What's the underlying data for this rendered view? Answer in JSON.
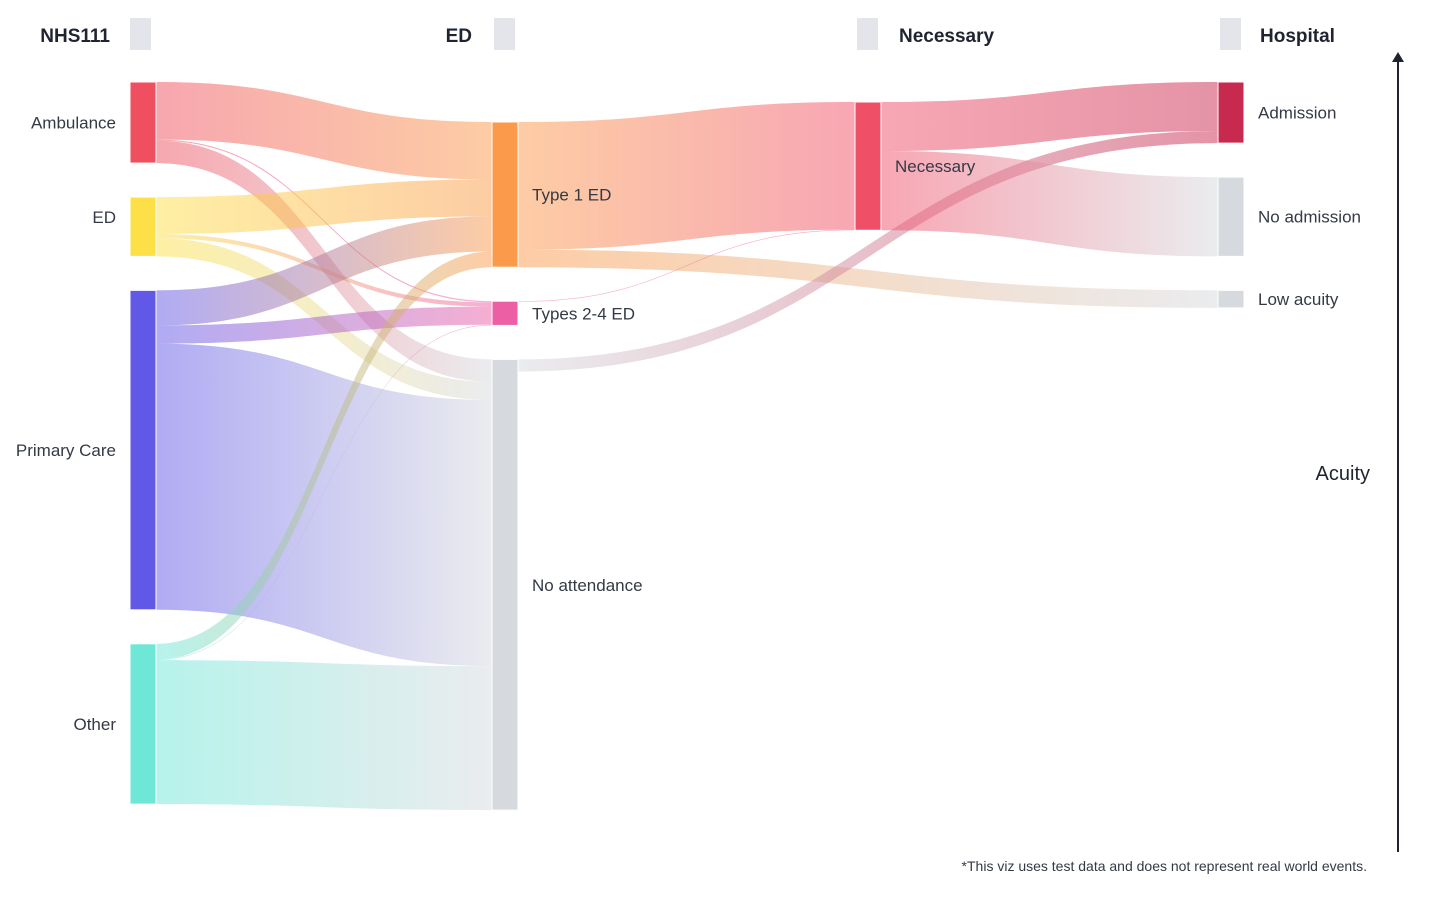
{
  "chart_data": {
    "type": "sankey",
    "columns": [
      {
        "id": "nhs111",
        "title": "NHS111"
      },
      {
        "id": "ed",
        "title": "ED"
      },
      {
        "id": "necessary",
        "title": "Necessary"
      },
      {
        "id": "hospital",
        "title": "Hospital"
      }
    ],
    "nodes": [
      {
        "id": "ambulance",
        "label": "Ambulance",
        "column": "nhs111",
        "color": "#ef4f5f"
      },
      {
        "id": "ed_src",
        "label": "ED",
        "column": "nhs111",
        "color": "#fde047"
      },
      {
        "id": "primary",
        "label": "Primary Care",
        "column": "nhs111",
        "color": "#6158e8"
      },
      {
        "id": "other",
        "label": "Other",
        "column": "nhs111",
        "color": "#6ee7d7"
      },
      {
        "id": "type1",
        "label": "Type 1 ED",
        "column": "ed",
        "color": "#fb9a4a"
      },
      {
        "id": "type24",
        "label": "Types 2-4 ED",
        "column": "ed",
        "color": "#ec5fa5"
      },
      {
        "id": "noatt",
        "label": "No attendance",
        "column": "ed",
        "color": "#d6d9de"
      },
      {
        "id": "necessary",
        "label": "Necessary",
        "column": "necessary",
        "color": "#f04f68"
      },
      {
        "id": "admission",
        "label": "Admission",
        "column": "hospital",
        "color": "#c8294e"
      },
      {
        "id": "noadmission",
        "label": "No admission",
        "column": "hospital",
        "color": "#d6d9de"
      },
      {
        "id": "lowacuity",
        "label": "Low acuity",
        "column": "hospital",
        "color": "#d6d9de"
      }
    ],
    "links": [
      {
        "source": "ambulance",
        "target": "type1",
        "value": 95
      },
      {
        "source": "ambulance",
        "target": "type24",
        "value": 2
      },
      {
        "source": "ambulance",
        "target": "noatt",
        "value": 37
      },
      {
        "source": "ed_src",
        "target": "type1",
        "value": 61
      },
      {
        "source": "ed_src",
        "target": "type24",
        "value": 7
      },
      {
        "source": "ed_src",
        "target": "noatt",
        "value": 30
      },
      {
        "source": "primary",
        "target": "type1",
        "value": 58
      },
      {
        "source": "primary",
        "target": "type24",
        "value": 30
      },
      {
        "source": "primary",
        "target": "noatt",
        "value": 440
      },
      {
        "source": "other",
        "target": "type1",
        "value": 26
      },
      {
        "source": "other",
        "target": "type24",
        "value": 1
      },
      {
        "source": "other",
        "target": "noatt",
        "value": 238
      },
      {
        "source": "type1",
        "target": "necessary",
        "value": 211
      },
      {
        "source": "type1",
        "target": "lowacuity",
        "value": 29
      },
      {
        "source": "type24",
        "target": "necessary",
        "value": 1
      },
      {
        "source": "noatt",
        "target": "admission",
        "value": 20
      },
      {
        "source": "necessary",
        "target": "admission",
        "value": 81
      },
      {
        "source": "necessary",
        "target": "noadmission",
        "value": 131
      }
    ],
    "axis": {
      "label": "Acuity",
      "direction": "up"
    },
    "footnote": "*This viz uses test data and does not represent real world events."
  }
}
